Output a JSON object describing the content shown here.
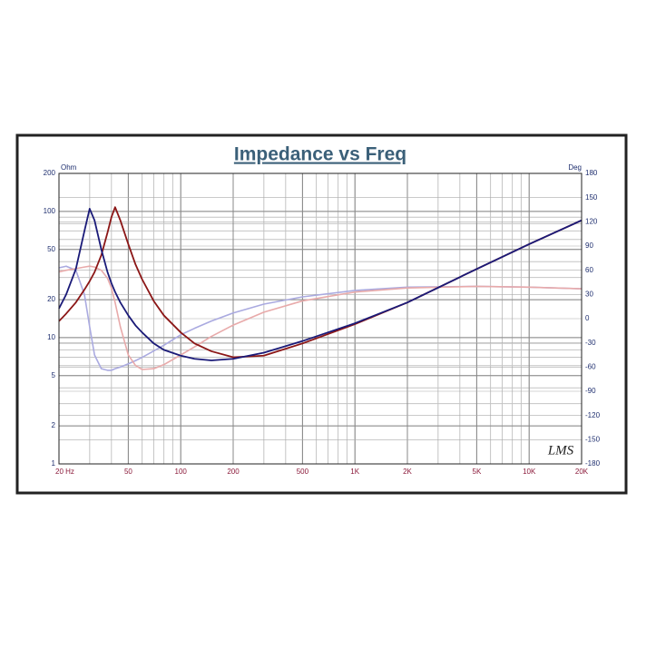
{
  "chart_data": {
    "type": "line",
    "title": "Impedance vs Freq",
    "y_label": "Ohm",
    "y2_label": "Deg",
    "watermark": "LMS",
    "x_log": true,
    "y_log": true,
    "grid": true,
    "minor_grid": true,
    "xlim": [
      20,
      20000
    ],
    "xticks": [
      {
        "value": 20,
        "label": "20  Hz"
      },
      50,
      100,
      200,
      500,
      {
        "value": 1000,
        "label": "1K"
      },
      {
        "value": 2000,
        "label": "2K"
      },
      {
        "value": 5000,
        "label": "5K"
      },
      {
        "value": 10000,
        "label": "10K"
      },
      {
        "value": 20000,
        "label": "20K"
      }
    ],
    "ylim": [
      1,
      200
    ],
    "yticks": [
      1,
      2,
      5,
      10,
      20,
      50,
      100,
      200
    ],
    "y2lim": [
      -180,
      180
    ],
    "y2ticks": [
      -180,
      -150,
      -120,
      -90,
      -60,
      -30,
      0,
      30,
      60,
      90,
      120,
      150,
      180
    ],
    "x": [
      20,
      22,
      25,
      28,
      30,
      32,
      35,
      38,
      40,
      42,
      45,
      50,
      55,
      60,
      70,
      80,
      100,
      120,
      150,
      200,
      300,
      500,
      1000,
      2000,
      5000,
      10000,
      20000
    ],
    "series": [
      {
        "color": "#aaaae0",
        "axis": "y2",
        "values": [
          63,
          65,
          60,
          30,
          -10,
          -45,
          -62,
          -64,
          -64,
          -62,
          -60,
          -56,
          -52,
          -48,
          -40,
          -33,
          -20,
          -12,
          -3,
          7,
          18,
          27,
          35,
          39,
          40,
          39,
          37
        ]
      },
      {
        "color": "#e8aaaa",
        "axis": "y2",
        "values": [
          58,
          60,
          62,
          64,
          65,
          64,
          60,
          50,
          38,
          20,
          -10,
          -45,
          -58,
          -63,
          -62,
          -57,
          -45,
          -35,
          -22,
          -8,
          8,
          22,
          33,
          38,
          40,
          39,
          37
        ]
      },
      {
        "color": "#8b1616",
        "values": [
          13.5,
          15.5,
          19,
          24,
          28,
          33,
          45,
          68,
          90,
          108,
          85,
          55,
          38,
          29,
          19.5,
          15,
          11,
          9,
          7.8,
          7,
          7.2,
          9,
          12.8,
          19,
          35,
          55,
          85
        ]
      },
      {
        "color": "#1a1a78",
        "values": [
          17,
          22,
          35,
          70,
          105,
          85,
          50,
          33,
          27,
          23,
          19,
          15,
          12.5,
          11,
          9,
          8,
          7.2,
          6.8,
          6.6,
          6.8,
          7.6,
          9.4,
          13,
          19,
          35,
          55,
          85
        ]
      }
    ]
  }
}
